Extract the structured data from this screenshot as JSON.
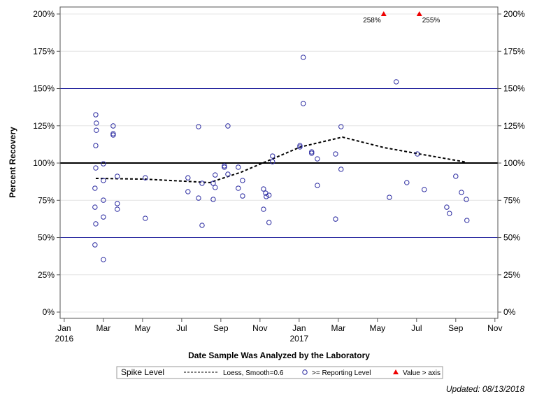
{
  "chart_data": {
    "type": "scatter",
    "x_label": "Date Sample Was Analyzed by the Laboratory",
    "y_label": "Percent Recovery",
    "xlim": [
      -0.21,
      22.15
    ],
    "ylim": [
      -4.2,
      204.7
    ],
    "xticks": [
      {
        "value": 0,
        "label": "Jan"
      },
      {
        "value": 2,
        "label": "Mar"
      },
      {
        "value": 4,
        "label": "May"
      },
      {
        "value": 6,
        "label": "Jul"
      },
      {
        "value": 8,
        "label": "Sep"
      },
      {
        "value": 10,
        "label": "Nov"
      },
      {
        "value": 12,
        "label": "Jan"
      },
      {
        "value": 14,
        "label": "Mar"
      },
      {
        "value": 16,
        "label": "May"
      },
      {
        "value": 18,
        "label": "Jul"
      },
      {
        "value": 20,
        "label": "Sep"
      },
      {
        "value": 22,
        "label": "Nov"
      }
    ],
    "x_year_labels": [
      {
        "value": 0,
        "label": "2016"
      },
      {
        "value": 12,
        "label": "2017"
      }
    ],
    "yticks": [
      {
        "value": 0,
        "label": "0%"
      },
      {
        "value": 25,
        "label": "25%"
      },
      {
        "value": 50,
        "label": "50%"
      },
      {
        "value": 75,
        "label": "75%"
      },
      {
        "value": 100,
        "label": "100%"
      },
      {
        "value": 125,
        "label": "125%"
      },
      {
        "value": 150,
        "label": "150%"
      },
      {
        "value": 175,
        "label": "175%"
      },
      {
        "value": 200,
        "label": "200%"
      }
    ],
    "grid": true,
    "reference_lines": [
      {
        "value": 50,
        "color": "#2a2aa0",
        "width": 1
      },
      {
        "value": 100,
        "color": "#000000",
        "width": 2
      },
      {
        "value": 150,
        "color": "#2a2aa0",
        "width": 1
      }
    ],
    "legend_title": "Spike Level",
    "series": [
      {
        "name": "Loess, Smooth=0.6",
        "kind": "line",
        "color": "#000000",
        "x": [
          1.61,
          4.14,
          7.43,
          9.04,
          10.64,
          12.07,
          14.21,
          16.36,
          18.14,
          20.57
        ],
        "values": [
          89.7,
          89.2,
          86.9,
          93.9,
          102.8,
          110.8,
          117.4,
          110.3,
          106.1,
          100.5
        ]
      },
      {
        "name": ">= Reporting Level",
        "kind": "circle",
        "color": "#2a2aa0",
        "x": [
          1.61,
          1.64,
          1.64,
          1.61,
          1.61,
          1.57,
          1.57,
          1.61,
          1.57,
          2.0,
          2.0,
          2.0,
          2.0,
          2.0,
          2.5,
          2.5,
          2.5,
          2.71,
          2.71,
          2.71,
          4.14,
          4.14,
          6.32,
          6.32,
          6.86,
          6.86,
          7.04,
          7.04,
          7.61,
          7.61,
          7.71,
          7.71,
          8.18,
          8.18,
          8.36,
          8.36,
          8.89,
          8.89,
          9.11,
          9.11,
          10.18,
          10.18,
          10.29,
          10.32,
          10.46,
          10.46,
          10.64,
          10.64,
          12.04,
          12.04,
          12.21,
          12.21,
          12.64,
          12.64,
          12.93,
          12.93,
          13.86,
          13.86,
          14.14,
          14.14,
          16.61,
          16.96,
          17.5,
          18.04,
          18.39,
          19.54,
          19.68,
          20.0,
          20.29,
          20.54,
          20.57
        ],
        "values": [
          132.4,
          126.8,
          122,
          111.7,
          96.7,
          83.1,
          70.4,
          59.2,
          45.1,
          99.5,
          88.3,
          75.1,
          63.8,
          35.2,
          124.9,
          119.7,
          118.8,
          91.1,
          72.8,
          69.0,
          90.1,
          62.9,
          90.1,
          80.8,
          124.4,
          76.5,
          86.4,
          58.2,
          86.4,
          75.6,
          92,
          83.6,
          98.1,
          97.2,
          124.9,
          92.5,
          97.2,
          83.1,
          88.3,
          77.9,
          82.6,
          69.0,
          79.8,
          77.5,
          78.4,
          60.1,
          104.7,
          100.9,
          111.7,
          110.8,
          170.9,
          139.9,
          107.5,
          106.6,
          102.8,
          85.0,
          106.1,
          62.4,
          124.4,
          95.8,
          77.0,
          154.5,
          86.9,
          106.1,
          82.2,
          70.4,
          66.2,
          91.1,
          80.3,
          75.6,
          61.5
        ]
      },
      {
        "name": "Value > axis",
        "kind": "triangle",
        "color": "#ee0000",
        "x": [
          16.32,
          18.14
        ],
        "values": [
          258,
          255
        ],
        "value_labels": [
          "258%",
          "255%"
        ]
      }
    ],
    "footer": "Updated: 08/13/2018"
  }
}
